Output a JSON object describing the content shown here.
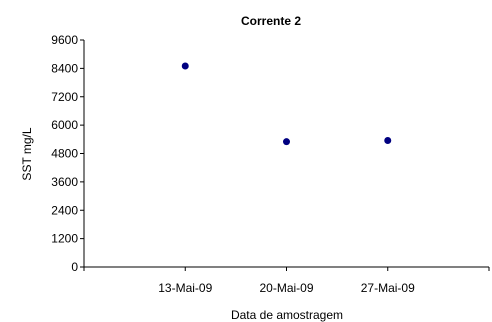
{
  "chart_data": {
    "type": "scatter",
    "title": "Corrente 2",
    "xlabel": "Data de amostragem",
    "ylabel": "SST mg/L",
    "x_ticks": [
      "13-Mai-09",
      "20-Mai-09",
      "27-Mai-09"
    ],
    "y_ticks": [
      "0",
      "1200",
      "2400",
      "3600",
      "4800",
      "6000",
      "7200",
      "8400",
      "9600"
    ],
    "ylim": [
      0,
      9600
    ],
    "grid": false,
    "series": [
      {
        "color": "#000080",
        "points": [
          {
            "x": "13-Mai-09",
            "y": 8500
          },
          {
            "x": "20-Mai-09",
            "y": 5300
          },
          {
            "x": "27-Mai-09",
            "y": 5350
          }
        ]
      }
    ]
  }
}
